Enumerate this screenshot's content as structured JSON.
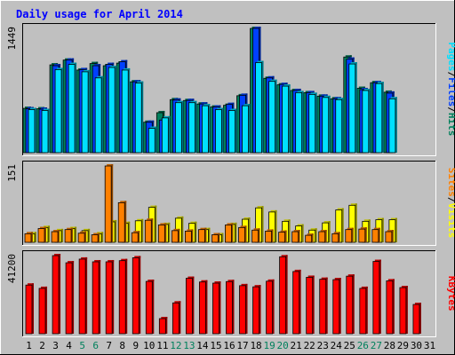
{
  "chart_data": {
    "type": "bar",
    "title": "Daily usage for April 2014",
    "colors": {
      "background": "#C0C0C0",
      "title": "#0000FF",
      "hits": "#00805C",
      "files": "#0040FF",
      "pages": "#00E0FF",
      "visits": "#FFFF00",
      "sites": "#FF8000",
      "kbytes": "#FF0000",
      "weekend_label": "#00805C",
      "axis_label": "#000000",
      "separator": "#000000"
    },
    "days": [
      "1",
      "2",
      "3",
      "4",
      "5",
      "6",
      "7",
      "8",
      "9",
      "10",
      "11",
      "12",
      "13",
      "14",
      "15",
      "16",
      "17",
      "18",
      "19",
      "20",
      "21",
      "22",
      "23",
      "24",
      "25",
      "26",
      "27",
      "28",
      "29",
      "30",
      "31"
    ],
    "weekend_days": [
      "5",
      "6",
      "12",
      "13",
      "19",
      "20",
      "26",
      "27"
    ],
    "panels": [
      {
        "name": "usage",
        "axis_max_label": "1449",
        "ylim": [
          0,
          1449
        ],
        "right_label_parts": [
          "Pages",
          "/",
          "Files",
          "/",
          "Hits"
        ],
        "right_label_colors": [
          "pages",
          "separator",
          "files",
          "separator",
          "hits"
        ],
        "series": [
          {
            "name": "Hits",
            "color_key": "hits",
            "values": [
              530,
              525,
              1030,
              1085,
              970,
              1045,
              1020,
              1050,
              835,
              370,
              480,
              630,
              620,
              580,
              545,
              565,
              675,
              1449,
              875,
              800,
              735,
              710,
              670,
              640,
              1120,
              760,
              825,
              715,
              0,
              0,
              0
            ]
          },
          {
            "name": "Files",
            "color_key": "files",
            "values": [
              525,
              520,
              1020,
              1085,
              975,
              1020,
              1035,
              1065,
              835,
              370,
              395,
              625,
              620,
              580,
              545,
              575,
              680,
              1449,
              880,
              805,
              735,
              710,
              670,
              640,
              1095,
              745,
              825,
              705,
              0,
              0,
              0
            ]
          },
          {
            "name": "Pages",
            "color_key": "pages",
            "values": [
              515,
              505,
              975,
              1035,
              950,
              880,
              1000,
              970,
              820,
              300,
              420,
              595,
              595,
              560,
              515,
              505,
              560,
              1055,
              840,
              785,
              710,
              690,
              655,
              630,
              1040,
              735,
              815,
              640,
              0,
              0,
              0
            ]
          }
        ]
      },
      {
        "name": "visitors",
        "axis_max_label": "151",
        "ylim": [
          0,
          151
        ],
        "right_label_parts": [
          "Sites",
          "/",
          "Visits"
        ],
        "right_label_colors": [
          "sites",
          "separator",
          "visits"
        ],
        "series": [
          {
            "name": "Visits",
            "color_key": "visits",
            "values": [
              20,
              32,
              26,
              30,
              26,
              20,
              43,
              40,
              45,
              71,
              38,
              50,
              40,
              28,
              18,
              38,
              48,
              70,
              62,
              44,
              35,
              27,
              41,
              66,
              75,
              44,
              47,
              47,
              0,
              0,
              0
            ]
          },
          {
            "name": "Sites",
            "color_key": "sites",
            "values": [
              20,
              30,
              24,
              28,
              21,
              18,
              151,
              80,
              22,
              46,
              37,
              26,
              25,
              28,
              18,
              37,
              32,
              27,
              25,
              23,
              24,
              17,
              24,
              20,
              28,
              29,
              28,
              24,
              0,
              0,
              0
            ]
          }
        ]
      },
      {
        "name": "traffic",
        "axis_max_label": "41200",
        "ylim": [
          0,
          41200
        ],
        "right_label_parts": [
          "KBytes"
        ],
        "right_label_colors": [
          "kbytes"
        ],
        "series": [
          {
            "name": "KBytes",
            "color_key": "kbytes",
            "values": [
              26000,
              24300,
              41200,
              37500,
              39400,
              38000,
              38000,
              38600,
              40100,
              27900,
              8700,
              16800,
              29500,
              27600,
              27000,
              27800,
              25700,
              25100,
              28000,
              40600,
              33000,
              30000,
              29000,
              28800,
              30600,
              24300,
              38200,
              28200,
              24700,
              16000,
              0
            ]
          }
        ]
      }
    ]
  }
}
